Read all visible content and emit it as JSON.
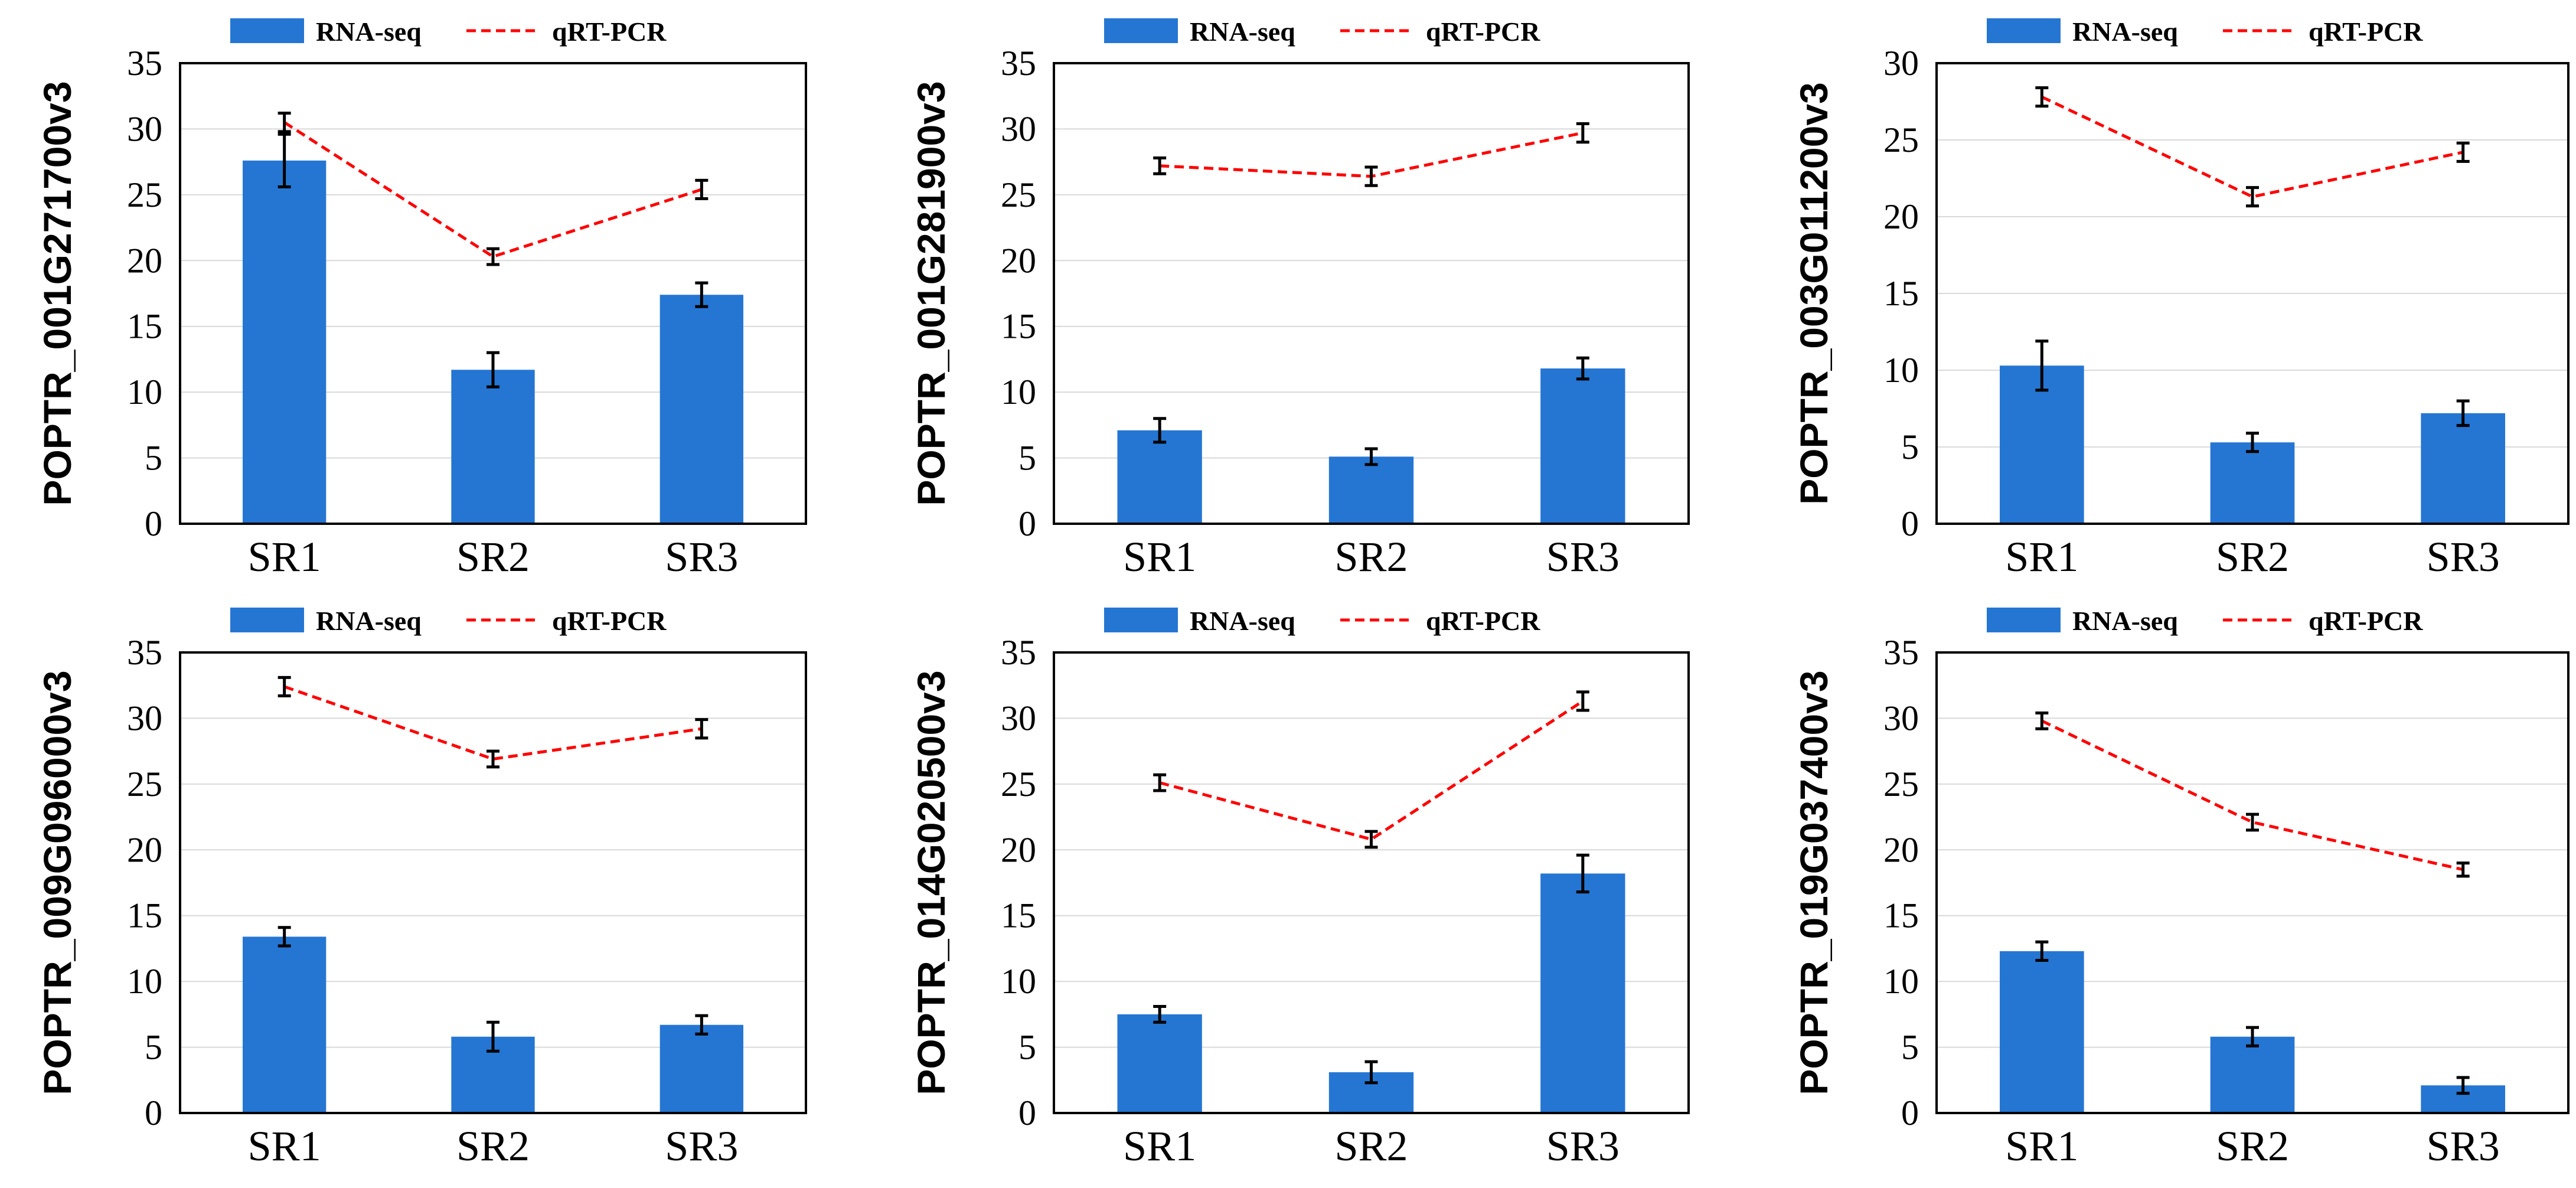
{
  "legend": {
    "bar_label": "RNA-seq",
    "line_label": "qRT-PCR"
  },
  "colors": {
    "bar": "#2576D3",
    "line": "#FF0000",
    "grid": "#D9D9D9",
    "axis": "#000000"
  },
  "chart_data": [
    {
      "type": "bar",
      "ylabel": "POPTR_001G271700v3",
      "categories": [
        "SR1",
        "SR2",
        "SR3"
      ],
      "ylim": [
        0,
        35
      ],
      "yticks": [
        0,
        5,
        10,
        15,
        20,
        25,
        30,
        35
      ],
      "series": [
        {
          "name": "RNA-seq",
          "kind": "bar",
          "values": [
            27.6,
            11.7,
            17.4
          ],
          "errors": [
            2.0,
            1.3,
            0.9
          ]
        },
        {
          "name": "qRT-PCR",
          "kind": "line",
          "values": [
            30.5,
            20.3,
            25.4
          ],
          "errors": [
            0.7,
            0.6,
            0.7
          ]
        }
      ]
    },
    {
      "type": "bar",
      "ylabel": "POPTR_001G281900v3",
      "categories": [
        "SR1",
        "SR2",
        "SR3"
      ],
      "ylim": [
        0,
        35
      ],
      "yticks": [
        0,
        5,
        10,
        15,
        20,
        25,
        30,
        35
      ],
      "series": [
        {
          "name": "RNA-seq",
          "kind": "bar",
          "values": [
            7.1,
            5.1,
            11.8
          ],
          "errors": [
            0.9,
            0.6,
            0.8
          ]
        },
        {
          "name": "qRT-PCR",
          "kind": "line",
          "values": [
            27.2,
            26.4,
            29.7
          ],
          "errors": [
            0.6,
            0.7,
            0.7
          ]
        }
      ]
    },
    {
      "type": "bar",
      "ylabel": "POPTR_003G011200v3",
      "categories": [
        "SR1",
        "SR2",
        "SR3"
      ],
      "ylim": [
        0,
        30
      ],
      "yticks": [
        0,
        5,
        10,
        15,
        20,
        25,
        30
      ],
      "series": [
        {
          "name": "RNA-seq",
          "kind": "bar",
          "values": [
            10.3,
            5.3,
            7.2
          ],
          "errors": [
            1.6,
            0.6,
            0.8
          ]
        },
        {
          "name": "qRT-PCR",
          "kind": "line",
          "values": [
            27.8,
            21.3,
            24.2
          ],
          "errors": [
            0.6,
            0.6,
            0.6
          ]
        }
      ]
    },
    {
      "type": "bar",
      "ylabel": "POPTR_009G096000v3",
      "categories": [
        "SR1",
        "SR2",
        "SR3"
      ],
      "ylim": [
        0,
        35
      ],
      "yticks": [
        0,
        5,
        10,
        15,
        20,
        25,
        30,
        35
      ],
      "series": [
        {
          "name": "RNA-seq",
          "kind": "bar",
          "values": [
            13.4,
            5.8,
            6.7
          ],
          "errors": [
            0.7,
            1.1,
            0.7
          ]
        },
        {
          "name": "qRT-PCR",
          "kind": "line",
          "values": [
            32.4,
            26.9,
            29.2
          ],
          "errors": [
            0.7,
            0.6,
            0.7
          ]
        }
      ]
    },
    {
      "type": "bar",
      "ylabel": "POPTR_014G020500v3",
      "categories": [
        "SR1",
        "SR2",
        "SR3"
      ],
      "ylim": [
        0,
        35
      ],
      "yticks": [
        0,
        5,
        10,
        15,
        20,
        25,
        30,
        35
      ],
      "series": [
        {
          "name": "RNA-seq",
          "kind": "bar",
          "values": [
            7.5,
            3.1,
            18.2
          ],
          "errors": [
            0.6,
            0.8,
            1.4
          ]
        },
        {
          "name": "qRT-PCR",
          "kind": "line",
          "values": [
            25.1,
            20.8,
            31.3
          ],
          "errors": [
            0.6,
            0.6,
            0.7
          ]
        }
      ]
    },
    {
      "type": "bar",
      "ylabel": "POPTR_019G037400v3",
      "categories": [
        "SR1",
        "SR2",
        "SR3"
      ],
      "ylim": [
        0,
        35
      ],
      "yticks": [
        0,
        5,
        10,
        15,
        20,
        25,
        30,
        35
      ],
      "series": [
        {
          "name": "RNA-seq",
          "kind": "bar",
          "values": [
            12.3,
            5.8,
            2.1
          ],
          "errors": [
            0.7,
            0.7,
            0.6
          ]
        },
        {
          "name": "qRT-PCR",
          "kind": "line",
          "values": [
            29.8,
            22.1,
            18.5
          ],
          "errors": [
            0.6,
            0.6,
            0.5
          ]
        }
      ]
    }
  ]
}
